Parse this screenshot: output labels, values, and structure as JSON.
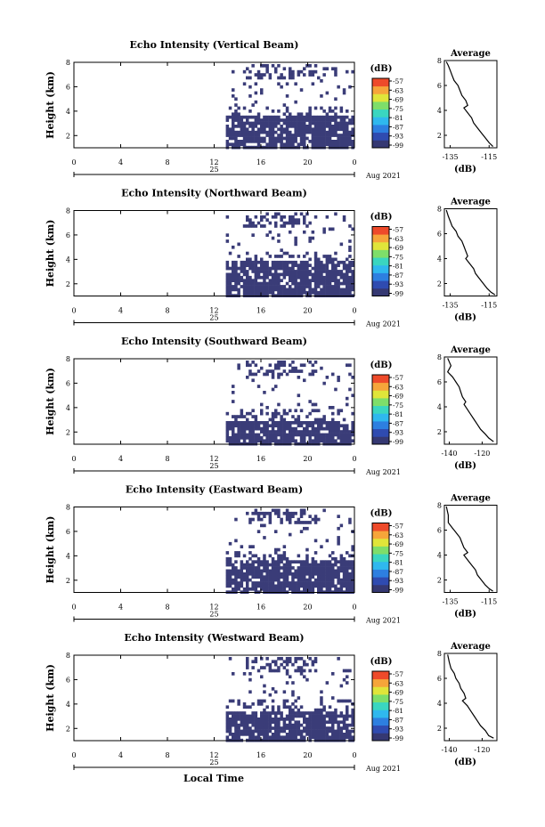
{
  "figure": {
    "xlabel": "Local Time",
    "x_ticks": [
      "0",
      "4",
      "8",
      "12",
      "16",
      "20",
      "0"
    ],
    "date_tick": "25",
    "date_label": "Aug 2021",
    "ylabel": "Height (km)",
    "y_ticks": [
      "2",
      "4",
      "6",
      "8"
    ],
    "colorbar_title": "(dB)",
    "colorbar_ticks": [
      "-57",
      "-63",
      "-69",
      "-75",
      "-81",
      "-87",
      "-93",
      "-99"
    ],
    "colorbar_colors": [
      "#353872",
      "#2f4bb0",
      "#2d7fe0",
      "#2fb8ee",
      "#3ad6c0",
      "#7ede6a",
      "#e0e53a",
      "#f6a53a",
      "#ee4a2a"
    ],
    "fill_color": "#3a3c78",
    "avg_title": "Average",
    "avg_xlabel": "(dB)"
  },
  "chart_data": [
    {
      "type": "heatmap",
      "title": "Echo Intensity (Vertical Beam)",
      "xlabel": "Local Time",
      "ylabel": "Height (km)",
      "xlim": [
        0,
        24
      ],
      "ylim": [
        1,
        8
      ],
      "echo_layer_km": [
        1,
        3.7
      ],
      "echo_start_hour": 13,
      "avg_profile": {
        "type": "line",
        "title": "Average",
        "xlabel": "(dB)",
        "xticks": [
          "-135",
          "-115"
        ],
        "xlim": [
          -138,
          -111
        ],
        "ylim": [
          1,
          8
        ],
        "points": [
          [
            -137,
            7.9
          ],
          [
            -136,
            7.6
          ],
          [
            -135,
            7.2
          ],
          [
            -134,
            6.8
          ],
          [
            -133,
            6.4
          ],
          [
            -131,
            6.0
          ],
          [
            -130,
            5.6
          ],
          [
            -129,
            5.2
          ],
          [
            -127,
            4.8
          ],
          [
            -126,
            4.4
          ],
          [
            -128,
            4.2
          ],
          [
            -126,
            3.8
          ],
          [
            -124,
            3.4
          ],
          [
            -123,
            3.0
          ],
          [
            -121,
            2.6
          ],
          [
            -119,
            2.2
          ],
          [
            -117,
            1.8
          ],
          [
            -115,
            1.4
          ],
          [
            -113,
            1.1
          ]
        ]
      }
    },
    {
      "type": "heatmap",
      "title": "Echo Intensity (Northward Beam)",
      "xlabel": "Local Time",
      "ylabel": "Height (km)",
      "xlim": [
        0,
        24
      ],
      "ylim": [
        1,
        8
      ],
      "echo_layer_km": [
        1,
        3.9
      ],
      "echo_start_hour": 13,
      "avg_profile": {
        "type": "line",
        "title": "Average",
        "xlabel": "(dB)",
        "xticks": [
          "-135",
          "-115"
        ],
        "xlim": [
          -138,
          -111
        ],
        "ylim": [
          1,
          8
        ],
        "points": [
          [
            -137,
            7.9
          ],
          [
            -136,
            7.4
          ],
          [
            -135,
            7.0
          ],
          [
            -134,
            6.6
          ],
          [
            -132,
            6.2
          ],
          [
            -131,
            5.8
          ],
          [
            -129,
            5.4
          ],
          [
            -128,
            5.0
          ],
          [
            -127,
            4.6
          ],
          [
            -126,
            4.2
          ],
          [
            -127,
            4.0
          ],
          [
            -125,
            3.6
          ],
          [
            -123,
            3.2
          ],
          [
            -122,
            2.8
          ],
          [
            -120,
            2.4
          ],
          [
            -118,
            2.0
          ],
          [
            -116,
            1.6
          ],
          [
            -114,
            1.3
          ],
          [
            -112,
            1.1
          ]
        ]
      }
    },
    {
      "type": "heatmap",
      "title": "Echo Intensity (Southward Beam)",
      "xlabel": "Local Time",
      "ylabel": "Height (km)",
      "xlim": [
        0,
        24
      ],
      "ylim": [
        1,
        8
      ],
      "echo_layer_km": [
        1,
        3.1
      ],
      "echo_start_hour": 13,
      "avg_profile": {
        "type": "line",
        "title": "Average",
        "xlabel": "(dB)",
        "xticks": [
          "-140",
          "-120"
        ],
        "xlim": [
          -143,
          -111
        ],
        "ylim": [
          1,
          8
        ],
        "points": [
          [
            -141,
            7.9
          ],
          [
            -139,
            7.3
          ],
          [
            -141,
            6.8
          ],
          [
            -138,
            6.4
          ],
          [
            -136,
            6.0
          ],
          [
            -134,
            5.6
          ],
          [
            -133,
            5.2
          ],
          [
            -132,
            4.8
          ],
          [
            -130,
            4.4
          ],
          [
            -131,
            4.2
          ],
          [
            -129,
            3.8
          ],
          [
            -127,
            3.4
          ],
          [
            -125,
            3.0
          ],
          [
            -123,
            2.6
          ],
          [
            -121,
            2.2
          ],
          [
            -118,
            1.8
          ],
          [
            -116,
            1.5
          ],
          [
            -113,
            1.2
          ]
        ]
      }
    },
    {
      "type": "heatmap",
      "title": "Echo Intensity (Eastward Beam)",
      "xlabel": "Local Time",
      "ylabel": "Height (km)",
      "xlim": [
        0,
        24
      ],
      "ylim": [
        1,
        8
      ],
      "echo_layer_km": [
        1,
        3.7
      ],
      "echo_start_hour": 13,
      "avg_profile": {
        "type": "line",
        "title": "Average",
        "xlabel": "(dB)",
        "xticks": [
          "-135",
          "-115"
        ],
        "xlim": [
          -138,
          -111
        ],
        "ylim": [
          1,
          8
        ],
        "points": [
          [
            -137,
            7.9
          ],
          [
            -136,
            7.2
          ],
          [
            -136,
            6.6
          ],
          [
            -134,
            6.2
          ],
          [
            -132,
            5.8
          ],
          [
            -130,
            5.4
          ],
          [
            -129,
            5.0
          ],
          [
            -128,
            4.6
          ],
          [
            -126,
            4.2
          ],
          [
            -128,
            4.0
          ],
          [
            -126,
            3.6
          ],
          [
            -124,
            3.2
          ],
          [
            -122,
            2.8
          ],
          [
            -121,
            2.4
          ],
          [
            -119,
            2.0
          ],
          [
            -117,
            1.6
          ],
          [
            -115,
            1.3
          ],
          [
            -113,
            1.1
          ]
        ]
      }
    },
    {
      "type": "heatmap",
      "title": "Echo Intensity (Westward Beam)",
      "xlabel": "Local Time",
      "ylabel": "Height (km)",
      "xlim": [
        0,
        24
      ],
      "ylim": [
        1,
        8
      ],
      "echo_layer_km": [
        1,
        3.6
      ],
      "echo_start_hour": 13,
      "avg_profile": {
        "type": "line",
        "title": "Average",
        "xlabel": "(dB)",
        "xticks": [
          "-140",
          "-120"
        ],
        "xlim": [
          -143,
          -111
        ],
        "ylim": [
          1,
          8
        ],
        "points": [
          [
            -141,
            7.9
          ],
          [
            -140,
            7.3
          ],
          [
            -139,
            6.8
          ],
          [
            -137,
            6.4
          ],
          [
            -136,
            6.0
          ],
          [
            -134,
            5.6
          ],
          [
            -133,
            5.2
          ],
          [
            -131,
            4.8
          ],
          [
            -130,
            4.4
          ],
          [
            -132,
            4.2
          ],
          [
            -129,
            3.8
          ],
          [
            -127,
            3.4
          ],
          [
            -125,
            3.0
          ],
          [
            -123,
            2.6
          ],
          [
            -121,
            2.2
          ],
          [
            -118,
            1.8
          ],
          [
            -116,
            1.4
          ],
          [
            -113,
            1.2
          ]
        ]
      }
    }
  ]
}
